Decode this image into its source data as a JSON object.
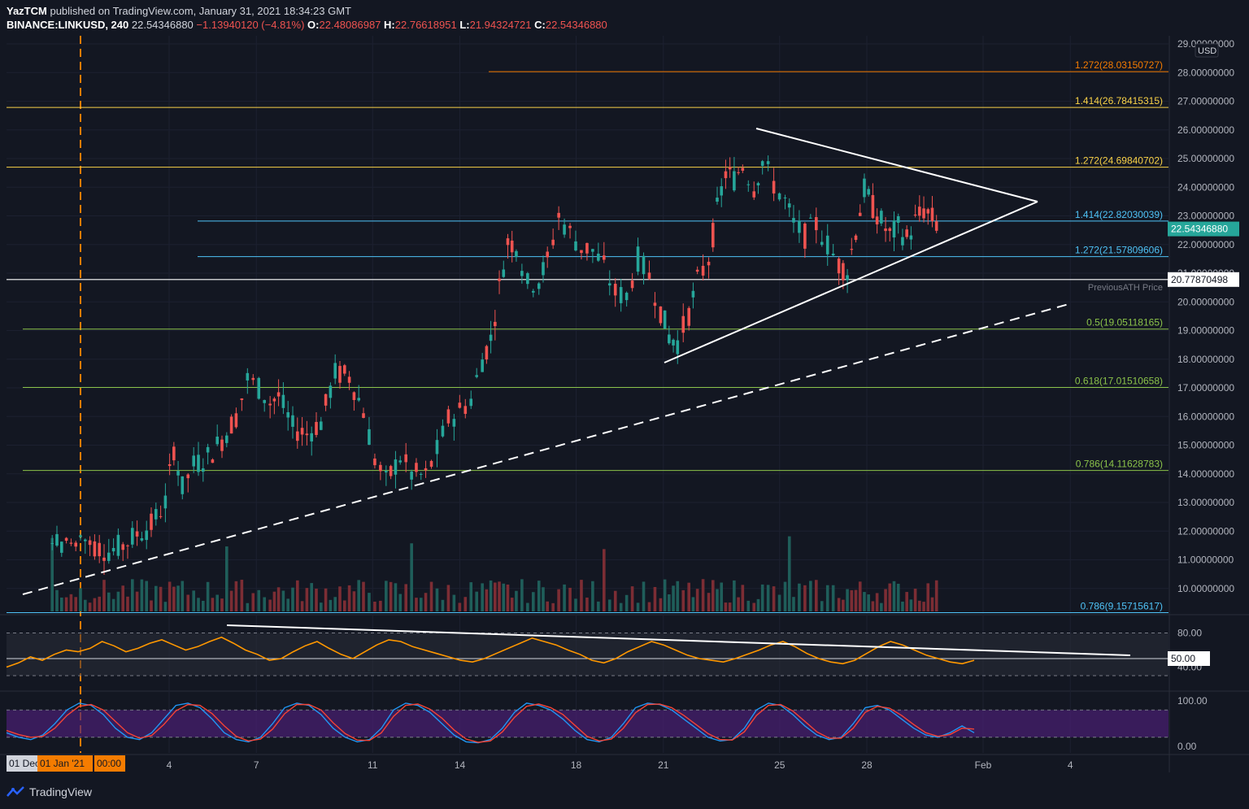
{
  "header": {
    "author": "YazTCM",
    "published": "published on TradingView.com, January 31, 2021 18:34:23 GMT",
    "symbol": "BINANCE:LINKUSD, 240",
    "price": "22.54346880",
    "change": "−1.13940120 (−4.81%)",
    "o_label": "O:",
    "o_value": "22.48086987",
    "h_label": "H:",
    "h_value": "22.76618951",
    "l_label": "L:",
    "l_value": "21.94324721",
    "c_label": "C:",
    "c_value": "22.54346880"
  },
  "currency_badge": "USD",
  "last_price_badge": "22.54346880",
  "ath_badge": "20.77870498",
  "ath_label": "PreviousATH Price",
  "brand": "TradingView",
  "date_badges": [
    "01 Dec",
    "01 Jan '21",
    "00:00"
  ],
  "colors": {
    "up": "#26a69a",
    "down": "#ef5350",
    "fib_orange": "#f57c00",
    "fib_yellow": "#f9d247",
    "fib_cyan": "#4fc3f7",
    "fib_green": "#8bc34a",
    "rsi_line": "#ff9800",
    "stoch_k": "#2196f3",
    "stoch_d": "#f44336",
    "stoch_band": "#4a1f73"
  },
  "chart_data": [
    {
      "type": "candlestick",
      "title": "BINANCE:LINKUSD, 240",
      "price_axis": {
        "min": 9,
        "max": 29,
        "ticks": [
          "29.00000000",
          "28.00000000",
          "27.00000000",
          "26.00000000",
          "25.00000000",
          "24.00000000",
          "23.00000000",
          "22.00000000",
          "21.00000000",
          "20.00000000",
          "19.00000000",
          "18.00000000",
          "17.00000000",
          "16.00000000",
          "15.00000000",
          "14.00000000",
          "13.00000000",
          "12.00000000",
          "11.00000000",
          "10.00000000"
        ],
        "tick_values": [
          29,
          28,
          27,
          26,
          25,
          24,
          23,
          22,
          21,
          20,
          19,
          18,
          17,
          16,
          15,
          14,
          13,
          12,
          11,
          10
        ]
      },
      "time_axis": {
        "tick_labels": [
          "4",
          "7",
          "11",
          "14",
          "18",
          "21",
          "25",
          "28",
          "Feb",
          "4"
        ],
        "tick_days": [
          35,
          38,
          42,
          45,
          49,
          52,
          56,
          59,
          63,
          66
        ],
        "note": "days measured from 01 Dec 2020 = 1"
      },
      "closes_by_day": [
        {
          "day": 32.0,
          "price": 11.8
        },
        {
          "day": 32.5,
          "price": 11.5
        },
        {
          "day": 33.0,
          "price": 11.3
        },
        {
          "day": 33.5,
          "price": 11.5
        },
        {
          "day": 34.0,
          "price": 11.9
        },
        {
          "day": 34.5,
          "price": 12.2
        },
        {
          "day": 35.0,
          "price": 13.0
        },
        {
          "day": 35.3,
          "price": 14.9
        },
        {
          "day": 35.6,
          "price": 13.5
        },
        {
          "day": 36.0,
          "price": 14.3
        },
        {
          "day": 36.5,
          "price": 14.6
        },
        {
          "day": 37.0,
          "price": 15.2
        },
        {
          "day": 37.5,
          "price": 16.0
        },
        {
          "day": 37.9,
          "price": 17.3
        },
        {
          "day": 38.3,
          "price": 17.0
        },
        {
          "day": 38.7,
          "price": 16.5
        },
        {
          "day": 39.0,
          "price": 16.7
        },
        {
          "day": 39.5,
          "price": 15.6
        },
        {
          "day": 40.0,
          "price": 15.4
        },
        {
          "day": 40.5,
          "price": 15.8
        },
        {
          "day": 41.0,
          "price": 17.5
        },
        {
          "day": 41.5,
          "price": 17.4
        },
        {
          "day": 42.0,
          "price": 16.2
        },
        {
          "day": 42.4,
          "price": 14.5
        },
        {
          "day": 42.8,
          "price": 13.7
        },
        {
          "day": 43.3,
          "price": 14.6
        },
        {
          "day": 43.7,
          "price": 14.0
        },
        {
          "day": 44.2,
          "price": 13.9
        },
        {
          "day": 44.6,
          "price": 14.8
        },
        {
          "day": 45.0,
          "price": 15.9
        },
        {
          "day": 45.4,
          "price": 16.2
        },
        {
          "day": 45.8,
          "price": 16.6
        },
        {
          "day": 46.2,
          "price": 18.0
        },
        {
          "day": 46.5,
          "price": 18.7
        },
        {
          "day": 46.8,
          "price": 20.5
        },
        {
          "day": 47.1,
          "price": 22.1
        },
        {
          "day": 47.4,
          "price": 22.0
        },
        {
          "day": 47.8,
          "price": 20.6
        },
        {
          "day": 48.2,
          "price": 20.8
        },
        {
          "day": 48.5,
          "price": 21.4
        },
        {
          "day": 48.9,
          "price": 23.0
        },
        {
          "day": 49.3,
          "price": 22.4
        },
        {
          "day": 49.7,
          "price": 21.9
        },
        {
          "day": 50.1,
          "price": 21.8
        },
        {
          "day": 50.5,
          "price": 21.2
        },
        {
          "day": 50.9,
          "price": 20.3
        },
        {
          "day": 51.3,
          "price": 20.2
        },
        {
          "day": 51.7,
          "price": 21.5
        },
        {
          "day": 52.1,
          "price": 20.9
        },
        {
          "day": 52.5,
          "price": 19.7
        },
        {
          "day": 52.8,
          "price": 18.8
        },
        {
          "day": 53.1,
          "price": 18.6
        },
        {
          "day": 53.5,
          "price": 19.6
        },
        {
          "day": 53.8,
          "price": 20.7
        },
        {
          "day": 54.2,
          "price": 21.5
        },
        {
          "day": 54.5,
          "price": 23.2
        },
        {
          "day": 54.8,
          "price": 24.5
        },
        {
          "day": 55.1,
          "price": 24.3
        },
        {
          "day": 55.4,
          "price": 24.8
        },
        {
          "day": 55.8,
          "price": 24.0
        },
        {
          "day": 56.1,
          "price": 24.9
        },
        {
          "day": 56.5,
          "price": 24.1
        },
        {
          "day": 56.9,
          "price": 23.5
        },
        {
          "day": 57.2,
          "price": 22.7
        },
        {
          "day": 57.6,
          "price": 22.3
        },
        {
          "day": 58.0,
          "price": 22.7
        },
        {
          "day": 58.4,
          "price": 22.0
        },
        {
          "day": 58.8,
          "price": 21.3
        },
        {
          "day": 59.1,
          "price": 21.1
        },
        {
          "day": 59.4,
          "price": 22.5
        },
        {
          "day": 59.7,
          "price": 23.9
        },
        {
          "day": 60.0,
          "price": 23.3
        },
        {
          "day": 60.3,
          "price": 22.8
        },
        {
          "day": 60.6,
          "price": 22.3
        },
        {
          "day": 60.9,
          "price": 22.6
        },
        {
          "day": 61.2,
          "price": 22.2
        },
        {
          "day": 61.5,
          "price": 22.8
        },
        {
          "day": 61.8,
          "price": 23.2
        },
        {
          "day": 62.1,
          "price": 22.9
        },
        {
          "day": 62.4,
          "price": 22.5
        }
      ],
      "fib_levels": [
        {
          "label": "1.272(28.03150727)",
          "value": 28.0315,
          "color": "fib_orange"
        },
        {
          "label": "1.414(26.78415315)",
          "value": 26.7842,
          "color": "fib_yellow"
        },
        {
          "label": "1.272(24.69840702)",
          "value": 24.6984,
          "color": "fib_yellow"
        },
        {
          "label": "1.414(22.82030039)",
          "value": 22.8203,
          "color": "fib_cyan"
        },
        {
          "label": "1.272(21.57809606)",
          "value": 21.5781,
          "color": "fib_cyan"
        },
        {
          "label": "0.5(19.05118165)",
          "value": 19.0512,
          "color": "fib_green"
        },
        {
          "label": "0.618(17.01510658)",
          "value": 17.0151,
          "color": "fib_green"
        },
        {
          "label": "0.786(14.11628783)",
          "value": 14.1163,
          "color": "fib_green"
        },
        {
          "label": "0.786(9.15715617)",
          "value": 9.1572,
          "color": "fib_cyan"
        }
      ],
      "previous_ath": 20.7787,
      "last_price": 22.5435
    },
    {
      "type": "line",
      "name": "RSI",
      "ylim": [
        0,
        100
      ],
      "tick_labels": [
        "80.00",
        "50.00",
        "40.00"
      ],
      "tick_values": [
        80,
        50,
        40
      ],
      "values": [
        40,
        45,
        52,
        48,
        55,
        60,
        58,
        62,
        70,
        65,
        58,
        62,
        68,
        72,
        66,
        60,
        64,
        70,
        75,
        68,
        60,
        55,
        48,
        50,
        58,
        65,
        70,
        62,
        55,
        50,
        58,
        66,
        72,
        70,
        64,
        60,
        56,
        52,
        48,
        46,
        50,
        56,
        62,
        68,
        74,
        70,
        66,
        60,
        55,
        48,
        45,
        50,
        58,
        64,
        70,
        66,
        60,
        54,
        50,
        48,
        46,
        50,
        55,
        60,
        66,
        70,
        64,
        56,
        50,
        46,
        44,
        48,
        56,
        64,
        70,
        66,
        60,
        54,
        50,
        46,
        44,
        48
      ]
    },
    {
      "type": "line",
      "name": "Stoch RSI",
      "ylim": [
        0,
        100
      ],
      "tick_labels": [
        "100.00",
        "0.00"
      ],
      "tick_values": [
        100,
        0
      ],
      "values_k": [
        30,
        20,
        15,
        25,
        50,
        80,
        95,
        90,
        70,
        40,
        20,
        15,
        30,
        60,
        90,
        95,
        85,
        60,
        30,
        15,
        10,
        20,
        50,
        85,
        95,
        90,
        70,
        40,
        20,
        10,
        15,
        40,
        80,
        95,
        90,
        75,
        50,
        25,
        10,
        8,
        15,
        40,
        75,
        95,
        90,
        80,
        60,
        35,
        15,
        10,
        20,
        50,
        85,
        95,
        92,
        80,
        60,
        40,
        20,
        12,
        15,
        40,
        80,
        95,
        90,
        70,
        45,
        25,
        15,
        20,
        50,
        85,
        90,
        80,
        60,
        40,
        25,
        20,
        30,
        45,
        30
      ],
      "values_d": [
        35,
        26,
        20,
        22,
        40,
        68,
        88,
        92,
        80,
        55,
        30,
        18,
        24,
        48,
        78,
        92,
        90,
        72,
        45,
        22,
        12,
        16,
        38,
        72,
        92,
        92,
        80,
        52,
        28,
        14,
        13,
        30,
        66,
        90,
        93,
        82,
        62,
        36,
        16,
        9,
        12,
        32,
        64,
        88,
        93,
        85,
        70,
        46,
        22,
        12,
        16,
        40,
        74,
        92,
        93,
        85,
        68,
        48,
        28,
        15,
        14,
        32,
        68,
        90,
        92,
        78,
        55,
        32,
        18,
        18,
        40,
        75,
        88,
        84,
        68,
        48,
        30,
        22,
        26,
        40,
        38
      ]
    }
  ]
}
